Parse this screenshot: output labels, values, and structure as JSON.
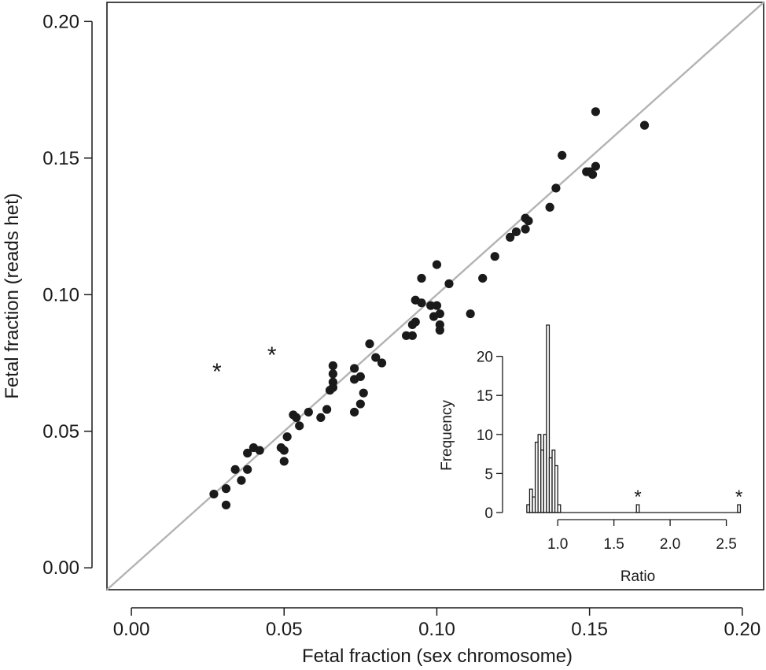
{
  "chart_data": [
    {
      "type": "scatter",
      "xlabel": "Fetal fraction (sex chromosome)",
      "ylabel": "Fetal fraction (reads het)",
      "xlim": [
        -0.008,
        0.207
      ],
      "ylim": [
        -0.008,
        0.207
      ],
      "x_ticks": [
        "0.00",
        "0.05",
        "0.10",
        "0.15",
        "0.20"
      ],
      "y_ticks": [
        "0.00",
        "0.05",
        "0.10",
        "0.15",
        "0.20"
      ],
      "reference_line": "y = x",
      "line_color": "#b3b3b3",
      "point_color": "#1a1a1a",
      "points": [
        [
          0.027,
          0.027
        ],
        [
          0.031,
          0.029
        ],
        [
          0.031,
          0.023
        ],
        [
          0.034,
          0.036
        ],
        [
          0.036,
          0.032
        ],
        [
          0.038,
          0.042
        ],
        [
          0.038,
          0.036
        ],
        [
          0.04,
          0.044
        ],
        [
          0.042,
          0.043
        ],
        [
          0.049,
          0.044
        ],
        [
          0.05,
          0.039
        ],
        [
          0.05,
          0.043
        ],
        [
          0.051,
          0.048
        ],
        [
          0.053,
          0.056
        ],
        [
          0.054,
          0.055
        ],
        [
          0.055,
          0.052
        ],
        [
          0.058,
          0.057
        ],
        [
          0.062,
          0.055
        ],
        [
          0.064,
          0.058
        ],
        [
          0.065,
          0.065
        ],
        [
          0.066,
          0.066
        ],
        [
          0.066,
          0.068
        ],
        [
          0.066,
          0.071
        ],
        [
          0.066,
          0.074
        ],
        [
          0.073,
          0.069
        ],
        [
          0.073,
          0.073
        ],
        [
          0.073,
          0.057
        ],
        [
          0.075,
          0.07
        ],
        [
          0.075,
          0.06
        ],
        [
          0.076,
          0.064
        ],
        [
          0.078,
          0.082
        ],
        [
          0.08,
          0.077
        ],
        [
          0.082,
          0.075
        ],
        [
          0.09,
          0.085
        ],
        [
          0.092,
          0.089
        ],
        [
          0.092,
          0.085
        ],
        [
          0.093,
          0.09
        ],
        [
          0.093,
          0.098
        ],
        [
          0.095,
          0.097
        ],
        [
          0.095,
          0.106
        ],
        [
          0.098,
          0.096
        ],
        [
          0.099,
          0.092
        ],
        [
          0.1,
          0.111
        ],
        [
          0.1,
          0.096
        ],
        [
          0.101,
          0.093
        ],
        [
          0.101,
          0.089
        ],
        [
          0.101,
          0.087
        ],
        [
          0.104,
          0.104
        ],
        [
          0.111,
          0.093
        ],
        [
          0.115,
          0.106
        ],
        [
          0.119,
          0.114
        ],
        [
          0.124,
          0.121
        ],
        [
          0.126,
          0.123
        ],
        [
          0.129,
          0.128
        ],
        [
          0.129,
          0.124
        ],
        [
          0.13,
          0.127
        ],
        [
          0.137,
          0.132
        ],
        [
          0.139,
          0.139
        ],
        [
          0.141,
          0.151
        ],
        [
          0.149,
          0.145
        ],
        [
          0.15,
          0.145
        ],
        [
          0.151,
          0.144
        ],
        [
          0.152,
          0.147
        ],
        [
          0.152,
          0.167
        ],
        [
          0.168,
          0.162
        ]
      ],
      "outliers": [
        {
          "x": 0.028,
          "y": 0.073,
          "marker": "*"
        },
        {
          "x": 0.046,
          "y": 0.079,
          "marker": "*"
        }
      ]
    },
    {
      "type": "bar",
      "subtype": "histogram",
      "xlabel": "Ratio",
      "ylabel": "Frequency",
      "xlim": [
        0.6,
        2.65
      ],
      "ylim": [
        0,
        25
      ],
      "x_ticks": [
        "1.0",
        "1.5",
        "2.0",
        "2.5"
      ],
      "y_ticks": [
        "0",
        "5",
        "10",
        "15",
        "20"
      ],
      "bin_width": 0.025,
      "bins": [
        {
          "start": 0.725,
          "count": 1
        },
        {
          "start": 0.75,
          "count": 3
        },
        {
          "start": 0.775,
          "count": 2
        },
        {
          "start": 0.8,
          "count": 9
        },
        {
          "start": 0.825,
          "count": 10
        },
        {
          "start": 0.85,
          "count": 8
        },
        {
          "start": 0.875,
          "count": 10
        },
        {
          "start": 0.9,
          "count": 24
        },
        {
          "start": 0.925,
          "count": 7
        },
        {
          "start": 0.95,
          "count": 8
        },
        {
          "start": 0.975,
          "count": 6
        },
        {
          "start": 1.0,
          "count": 1
        },
        {
          "start": 1.7,
          "count": 1,
          "marker": "*"
        },
        {
          "start": 2.6,
          "count": 1,
          "marker": "*"
        }
      ]
    }
  ]
}
